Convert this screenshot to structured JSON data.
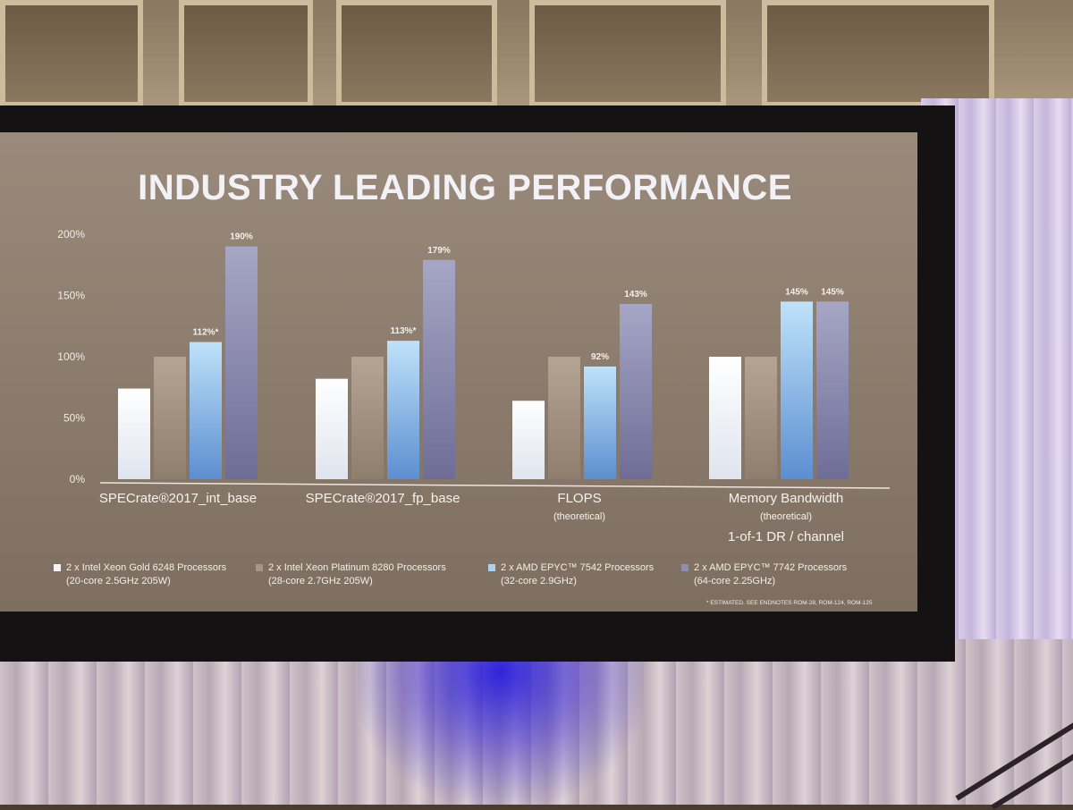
{
  "slide": {
    "title": "INDUSTRY LEADING PERFORMANCE",
    "footnote": "* ESTIMATED. SEE ENDNOTES ROM-28, ROM-124, ROM-125"
  },
  "legend": [
    {
      "line1": "2 x Intel Xeon Gold 6248 Processors",
      "line2": "(20-core 2.5GHz 205W)",
      "color": "#f4f2f4"
    },
    {
      "line1": "2 x Intel Xeon Platinum 8280 Processors",
      "line2": "(28-core 2.7GHz 205W)",
      "color": "#a69585"
    },
    {
      "line1": "2 x AMD EPYC™ 7542 Processors",
      "line2": "(32-core 2.9GHz)",
      "color": "#a8d2f0"
    },
    {
      "line1": "2 x AMD EPYC™ 7742 Processors",
      "line2": "(64-core 2.25GHz)",
      "color": "#8e8eb0"
    }
  ],
  "chart_data": {
    "type": "bar",
    "title": "INDUSTRY LEADING PERFORMANCE",
    "categories": [
      "SPECrate®2017_int_base",
      "SPECrate®2017_fp_base",
      "FLOPS",
      "Memory Bandwidth"
    ],
    "category_subtitles": [
      "",
      "",
      "(theoretical)",
      "(theoretical)"
    ],
    "category_notes": [
      "",
      "",
      "",
      "1-of-1 DR / channel"
    ],
    "yticks": [
      "0%",
      "50%",
      "100%",
      "150%",
      "200%"
    ],
    "ylim": [
      0,
      200
    ],
    "series": [
      {
        "name": "2 x Intel Xeon Gold 6248 Processors",
        "values": [
          74,
          82,
          64,
          100
        ],
        "labels": [
          "",
          "",
          "",
          ""
        ]
      },
      {
        "name": "2 x Intel Xeon Platinum 8280 Processors",
        "values": [
          100,
          100,
          100,
          100
        ],
        "labels": [
          "",
          "",
          "",
          ""
        ]
      },
      {
        "name": "2 x AMD EPYC™ 7542 Processors",
        "values": [
          112,
          113,
          92,
          145
        ],
        "labels": [
          "112%*",
          "113%*",
          "92%",
          "145%"
        ]
      },
      {
        "name": "2 x AMD EPYC™ 7742 Processors",
        "values": [
          190,
          179,
          143,
          145
        ],
        "labels": [
          "190%",
          "179%",
          "143%",
          "145%"
        ]
      }
    ],
    "legend_position": "bottom",
    "grid": false
  }
}
